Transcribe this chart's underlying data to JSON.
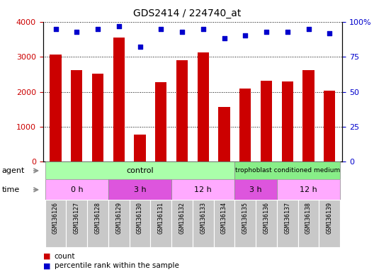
{
  "title": "GDS2414 / 224740_at",
  "samples": [
    "GSM136126",
    "GSM136127",
    "GSM136128",
    "GSM136129",
    "GSM136130",
    "GSM136131",
    "GSM136132",
    "GSM136133",
    "GSM136134",
    "GSM136135",
    "GSM136136",
    "GSM136137",
    "GSM136138",
    "GSM136139"
  ],
  "counts": [
    3060,
    2620,
    2520,
    3540,
    770,
    2280,
    2900,
    3130,
    1560,
    2090,
    2320,
    2300,
    2620,
    2040
  ],
  "percentile_ranks": [
    95,
    93,
    95,
    97,
    82,
    95,
    93,
    95,
    88,
    90,
    93,
    93,
    95,
    92
  ],
  "bar_color": "#cc0000",
  "dot_color": "#0000cc",
  "ylim_left": [
    0,
    4000
  ],
  "ylim_right": [
    0,
    100
  ],
  "yticks_left": [
    0,
    1000,
    2000,
    3000,
    4000
  ],
  "yticks_right": [
    0,
    25,
    50,
    75,
    100
  ],
  "yticklabels_right": [
    "0",
    "25",
    "50",
    "75",
    "100%"
  ],
  "tick_bg_color": "#c8c8c8",
  "agent_control_color": "#aaffaa",
  "agent_troph_color": "#88ee88",
  "time_light_color": "#ffaaff",
  "time_dark_color": "#dd44dd",
  "legend_count_color": "#cc0000",
  "legend_pct_color": "#0000cc"
}
